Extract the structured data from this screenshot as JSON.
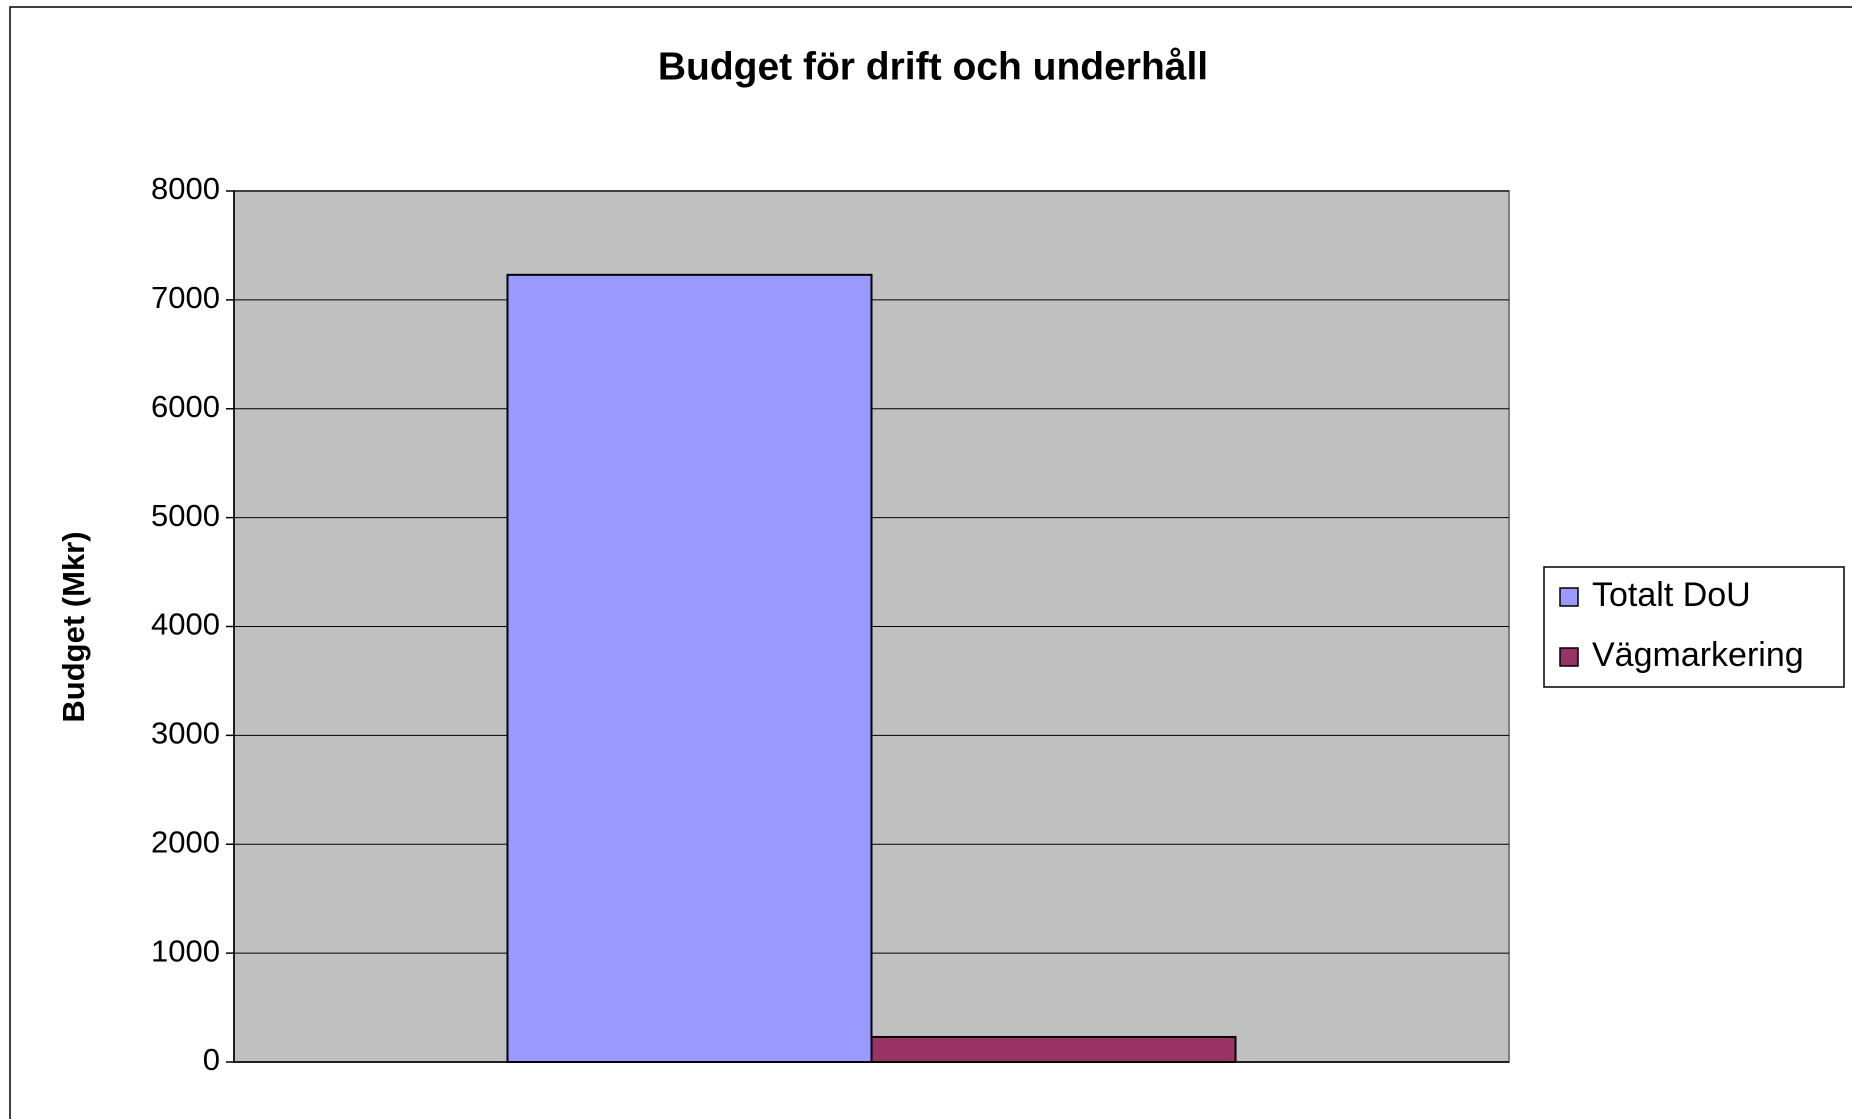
{
  "chart_data": {
    "type": "bar",
    "title": "Budget för drift och underhåll",
    "y_label": "Budget (Mkr)",
    "categories": [
      null
    ],
    "series": [
      {
        "name": "Totalt DoU",
        "color": "#9999ff",
        "values": [
          7230
        ]
      },
      {
        "name": "Vägmarkering",
        "color": "#993366",
        "values": [
          230
        ]
      }
    ],
    "ylim": [
      0,
      8000
    ],
    "yticks": [
      0,
      1000,
      2000,
      3000,
      4000,
      5000,
      6000,
      7000,
      8000
    ],
    "grid": true,
    "legend": "right",
    "plot_background": "#c0c0c0"
  }
}
